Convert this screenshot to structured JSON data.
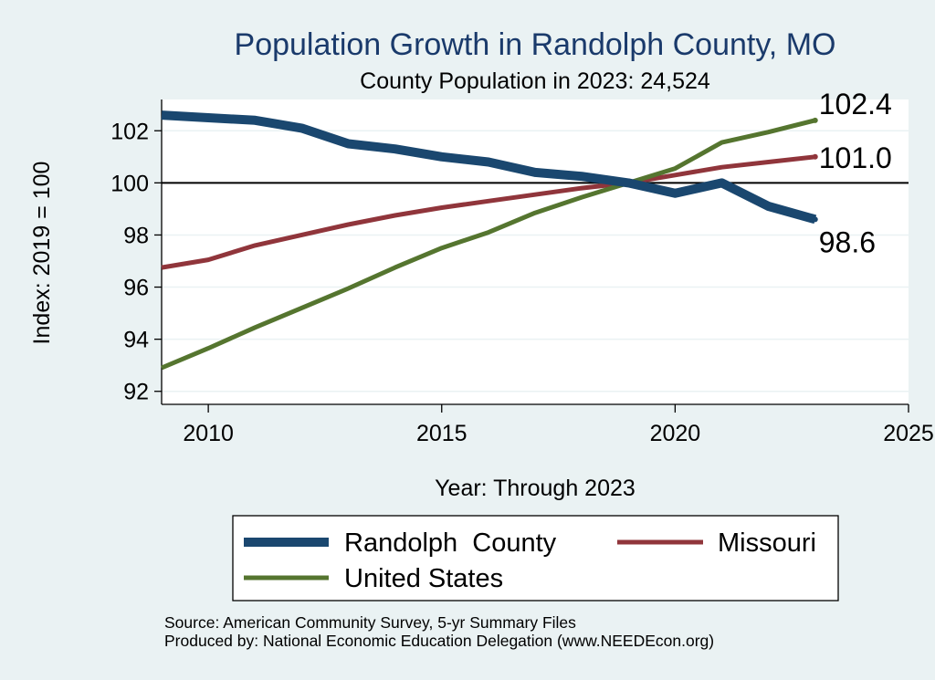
{
  "chart_data": {
    "type": "line",
    "title": "Population Growth in Randolph County, MO",
    "subtitle": "County Population in 2023: 24,524",
    "xlabel": "Year: Through 2023",
    "ylabel": "Index: 2019 = 100",
    "xlim": [
      2009,
      2025
    ],
    "ylim": [
      91.5,
      103.2
    ],
    "xticks": [
      2010,
      2015,
      2020,
      2025
    ],
    "yticks": [
      92,
      94,
      96,
      98,
      100,
      102
    ],
    "reference_line": 100,
    "x": [
      2009,
      2010,
      2011,
      2012,
      2013,
      2014,
      2015,
      2016,
      2017,
      2018,
      2019,
      2020,
      2021,
      2022,
      2023
    ],
    "series": [
      {
        "name": "Randolph  County",
        "color": "#1a476f",
        "values": [
          102.6,
          102.5,
          102.4,
          102.1,
          101.5,
          101.3,
          101.0,
          100.8,
          100.4,
          100.25,
          100.0,
          99.6,
          100.0,
          99.1,
          98.6
        ],
        "end_label": "98.6"
      },
      {
        "name": "Missouri",
        "color": "#90353b",
        "values": [
          96.75,
          97.05,
          97.6,
          98.0,
          98.4,
          98.75,
          99.05,
          99.3,
          99.55,
          99.8,
          100.0,
          100.3,
          100.6,
          100.8,
          101.0
        ],
        "end_label": "101.0"
      },
      {
        "name": "United States",
        "color": "#55752f",
        "values": [
          92.9,
          93.65,
          94.45,
          95.2,
          95.95,
          96.75,
          97.5,
          98.1,
          98.85,
          99.45,
          100.0,
          100.55,
          101.55,
          101.95,
          102.4
        ],
        "end_label": "102.4"
      }
    ],
    "legend": [
      "Randolph  County",
      "Missouri",
      "United States"
    ],
    "notes": [
      "Source: American Community Survey, 5-yr Summary Files",
      "Produced by: National Economic Education Delegation (www.NEEDEcon.org)"
    ]
  }
}
